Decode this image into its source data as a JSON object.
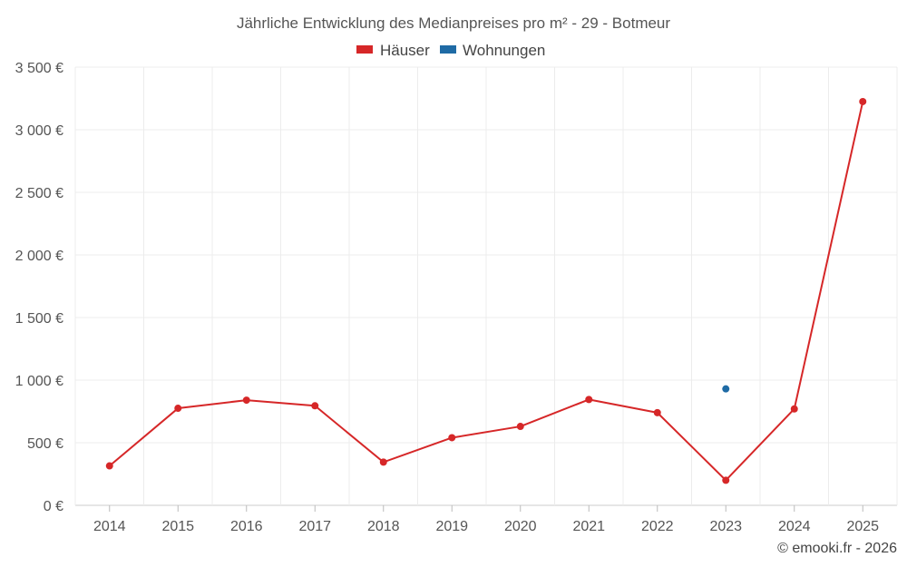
{
  "chart_data": {
    "type": "line",
    "title": "Jährliche Entwicklung des Medianpreises pro m² - 29 - Botmeur",
    "categories": [
      "2014",
      "2015",
      "2016",
      "2017",
      "2018",
      "2019",
      "2020",
      "2021",
      "2022",
      "2023",
      "2024",
      "2025"
    ],
    "series": [
      {
        "name": "Häuser",
        "color": "#d62728",
        "values": [
          315,
          775,
          840,
          795,
          345,
          540,
          630,
          845,
          740,
          200,
          770,
          3225
        ]
      },
      {
        "name": "Wohnungen",
        "color": "#1f6ba5",
        "values": [
          null,
          null,
          null,
          null,
          null,
          null,
          null,
          null,
          null,
          930,
          null,
          null
        ]
      }
    ],
    "ylim": [
      0,
      3500
    ],
    "yticks": [
      0,
      500,
      1000,
      1500,
      2000,
      2500,
      3000,
      3500
    ],
    "ytick_labels": [
      "0 €",
      "500 €",
      "1 000 €",
      "1 500 €",
      "2 000 €",
      "2 500 €",
      "3 000 €",
      "3 500 €"
    ],
    "xlabel": "",
    "ylabel": "",
    "grid": true,
    "legend": "top-center"
  },
  "footer": {
    "copyright": "© emooki.fr - 2026"
  }
}
